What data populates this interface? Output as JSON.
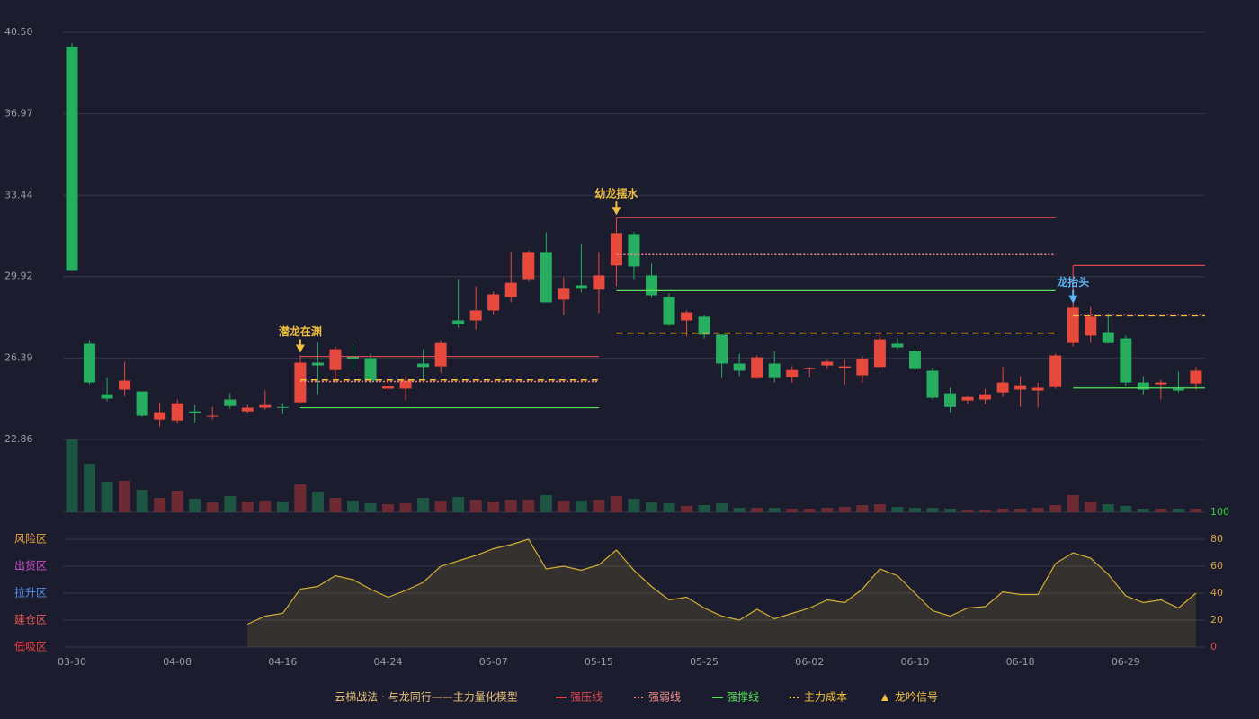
{
  "chart_data": [
    {
      "type": "candlestick",
      "up_color": "#e8493d",
      "down_color": "#27ae60",
      "volume_up_color": "#6e2a33",
      "volume_down_color": "#1e5442",
      "ylim": [
        22.86,
        40.5
      ],
      "yticks": [
        {
          "value": 40.5,
          "label": "40.50"
        },
        36.97,
        33.44,
        29.92,
        26.39,
        22.86
      ],
      "grid": true,
      "open": [
        39.88,
        27.01,
        24.82,
        25.02,
        24.94,
        23.73,
        23.69,
        24.08,
        23.85,
        24.59,
        24.08,
        24.24,
        24.27,
        24.47,
        26.19,
        25.87,
        26.46,
        26.38,
        25.06,
        25.06,
        26.15,
        26.03,
        28.02,
        28.02,
        28.45,
        29.03,
        29.81,
        30.98,
        28.92,
        29.54,
        29.35,
        30.4,
        31.76,
        29.97,
        29.03,
        28.02,
        28.18,
        27.4,
        26.15,
        25.52,
        26.15,
        25.56,
        25.91,
        26.07,
        25.95,
        25.64,
        26.0,
        27.01,
        26.69,
        25.84,
        24.86,
        24.55,
        24.59,
        24.9,
        25.02,
        24.98,
        25.13,
        27.04,
        27.36,
        27.51,
        27.24,
        25.33,
        25.25,
        25.06,
        25.29
      ],
      "high": [
        40.03,
        27.16,
        25.52,
        26.23,
        24.94,
        24.47,
        24.59,
        24.35,
        24.27,
        24.86,
        24.35,
        24.98,
        24.43,
        26.5,
        27.08,
        26.89,
        27.01,
        26.58,
        25.52,
        25.6,
        26.77,
        27.16,
        29.81,
        29.5,
        29.27,
        31.01,
        31.04,
        31.84,
        29.89,
        31.3,
        30.98,
        32.47,
        31.84,
        30.48,
        29.19,
        28.45,
        28.25,
        27.4,
        26.58,
        26.5,
        26.69,
        26.03,
        25.99,
        26.3,
        26.3,
        26.46,
        27.55,
        27.24,
        26.85,
        25.95,
        25.1,
        24.74,
        25.06,
        26.0,
        25.6,
        25.33,
        26.58,
        28.64,
        28.6,
        28.33,
        27.36,
        25.6,
        25.44,
        25.8,
        26.0
      ],
      "low": [
        30.2,
        25.25,
        24.51,
        24.74,
        23.85,
        23.42,
        23.54,
        23.57,
        23.73,
        24.2,
        24.0,
        24.16,
        23.96,
        24.43,
        24.82,
        25.33,
        25.91,
        25.33,
        24.98,
        24.55,
        25.41,
        25.76,
        27.7,
        27.63,
        28.29,
        28.8,
        29.7,
        28.8,
        28.25,
        29.23,
        28.33,
        29.5,
        29.81,
        28.99,
        27.79,
        27.32,
        27.24,
        25.52,
        25.6,
        25.48,
        25.33,
        25.33,
        25.56,
        25.91,
        25.25,
        25.33,
        25.91,
        26.77,
        25.84,
        24.59,
        24.04,
        24.39,
        24.39,
        24.7,
        24.27,
        24.24,
        25.06,
        26.89,
        27.04,
        27.01,
        25.17,
        24.82,
        24.59,
        24.9,
        25.02
      ],
      "close": [
        30.2,
        25.33,
        24.63,
        25.41,
        23.89,
        24.04,
        24.43,
        24.0,
        23.89,
        24.31,
        24.24,
        24.35,
        24.24,
        26.19,
        26.07,
        26.77,
        26.34,
        25.41,
        25.17,
        25.41,
        26.0,
        27.04,
        27.86,
        28.45,
        29.15,
        29.65,
        30.98,
        28.8,
        29.39,
        29.39,
        29.97,
        31.8,
        30.36,
        29.11,
        27.82,
        28.37,
        27.4,
        26.15,
        25.84,
        26.42,
        25.52,
        25.87,
        25.95,
        26.23,
        26.03,
        26.34,
        27.2,
        26.85,
        25.91,
        24.67,
        24.27,
        24.7,
        24.82,
        25.33,
        25.21,
        25.1,
        26.5,
        28.57,
        28.18,
        27.04,
        25.33,
        25.02,
        25.33,
        24.98,
        25.84
      ],
      "volume": [
        81,
        54,
        34,
        35,
        25,
        16,
        24,
        15,
        11,
        18,
        12,
        13,
        12,
        31,
        23,
        16,
        13,
        10,
        9,
        10,
        16,
        13,
        17,
        14,
        12,
        14,
        14,
        19,
        13,
        13,
        14,
        18,
        15,
        11,
        10,
        7,
        8,
        10,
        5,
        5,
        5,
        4,
        4,
        5,
        6,
        8,
        9,
        6,
        5,
        5,
        4,
        2,
        2,
        4,
        4,
        5,
        8,
        19,
        12,
        9,
        7,
        4,
        4,
        4,
        4
      ],
      "series": [
        {
          "name": "强压线",
          "color": "#d9474f",
          "style": "solid",
          "values": [
            null,
            null,
            null,
            null,
            null,
            null,
            null,
            null,
            null,
            null,
            null,
            null,
            null,
            26.46,
            26.46,
            26.46,
            26.46,
            26.46,
            26.46,
            26.46,
            26.46,
            26.46,
            26.46,
            26.46,
            26.46,
            26.46,
            26.46,
            26.46,
            26.46,
            26.46,
            26.46,
            32.47,
            32.47,
            32.47,
            32.47,
            32.47,
            32.47,
            32.47,
            32.47,
            32.47,
            32.47,
            32.47,
            32.47,
            32.47,
            32.47,
            32.47,
            32.47,
            32.47,
            32.47,
            32.47,
            32.47,
            32.47,
            32.47,
            32.47,
            32.47,
            32.47,
            32.47,
            30.4,
            30.4,
            30.4,
            30.4,
            30.4,
            30.4,
            30.4,
            30.4
          ]
        },
        {
          "name": "强弱线",
          "color": "#f08a8a",
          "style": "dotted",
          "values": [
            null,
            null,
            null,
            null,
            null,
            null,
            null,
            null,
            null,
            null,
            null,
            null,
            null,
            25.37,
            25.37,
            25.37,
            25.37,
            25.37,
            25.37,
            25.37,
            25.37,
            25.37,
            25.37,
            25.37,
            25.37,
            25.37,
            25.37,
            25.37,
            25.37,
            25.37,
            25.37,
            30.87,
            30.87,
            30.87,
            30.87,
            30.87,
            30.87,
            30.87,
            30.87,
            30.87,
            30.87,
            30.87,
            30.87,
            30.87,
            30.87,
            30.87,
            30.87,
            30.87,
            30.87,
            30.87,
            30.87,
            30.87,
            30.87,
            30.87,
            30.87,
            30.87,
            30.87,
            28.26,
            28.26,
            28.26,
            28.26,
            28.26,
            28.26,
            28.26,
            28.26
          ]
        },
        {
          "name": "强撑线",
          "color": "#5be05b",
          "style": "solid",
          "values": [
            null,
            null,
            null,
            null,
            null,
            null,
            null,
            null,
            null,
            null,
            null,
            null,
            null,
            24.24,
            24.24,
            24.24,
            24.24,
            24.24,
            24.24,
            24.24,
            24.24,
            24.24,
            24.24,
            24.24,
            24.24,
            24.24,
            24.24,
            24.24,
            24.24,
            24.24,
            24.24,
            29.31,
            29.31,
            29.31,
            29.31,
            29.31,
            29.31,
            29.31,
            29.31,
            29.31,
            29.31,
            29.31,
            29.31,
            29.31,
            29.31,
            29.31,
            29.31,
            29.31,
            29.31,
            29.31,
            29.31,
            29.31,
            29.31,
            29.31,
            29.31,
            29.31,
            29.31,
            25.09,
            25.09,
            25.09,
            25.09,
            25.09,
            25.09,
            25.09,
            25.09
          ]
        },
        {
          "name": "主力成本",
          "color": "#f2c230",
          "style": "dashed",
          "values": [
            null,
            null,
            null,
            null,
            null,
            null,
            null,
            null,
            null,
            null,
            null,
            null,
            null,
            25.44,
            25.44,
            25.44,
            25.44,
            25.44,
            25.44,
            25.44,
            25.44,
            25.44,
            25.44,
            25.44,
            25.44,
            25.44,
            25.44,
            25.44,
            25.44,
            25.44,
            25.44,
            27.47,
            27.47,
            27.47,
            27.47,
            27.47,
            27.47,
            27.47,
            27.47,
            27.47,
            27.47,
            27.47,
            27.47,
            27.47,
            27.47,
            27.47,
            27.47,
            27.47,
            27.47,
            27.47,
            27.47,
            27.47,
            27.47,
            27.47,
            27.47,
            27.47,
            27.47,
            28.22,
            28.22,
            28.22,
            28.22,
            28.22,
            28.22,
            28.22,
            28.22
          ]
        }
      ],
      "annotations": [
        {
          "index": 13,
          "text": "潜龙在渊",
          "color": "#f2c040"
        },
        {
          "index": 31,
          "text": "幼龙摆水",
          "color": "#f2c040"
        },
        {
          "index": 57,
          "text": "龙抬头",
          "color": "#5ab8f5"
        }
      ],
      "legend_title": "云梯战法 · 与龙同行——主力量化模型",
      "legend_title_color": "#e8c27a",
      "signal_legend": "龙吟信号",
      "signal_color": "#f2c040"
    },
    {
      "type": "area",
      "color": "#d4b032",
      "categories": [
        "03-30",
        null,
        null,
        null,
        null,
        null,
        "04-08",
        null,
        null,
        null,
        null,
        null,
        "04-16",
        null,
        null,
        null,
        null,
        null,
        "04-24",
        null,
        null,
        null,
        null,
        null,
        "05-07",
        null,
        null,
        null,
        null,
        null,
        "05-15",
        null,
        null,
        null,
        null,
        null,
        "05-25",
        null,
        null,
        null,
        null,
        null,
        "06-02",
        null,
        null,
        null,
        null,
        null,
        "06-10",
        null,
        null,
        null,
        null,
        null,
        "06-18",
        null,
        null,
        null,
        null,
        null,
        "06-29",
        null,
        null,
        null,
        null
      ],
      "values": [
        null,
        null,
        null,
        null,
        null,
        null,
        null,
        null,
        null,
        null,
        17,
        23,
        25,
        43,
        45,
        53,
        50,
        43,
        37,
        42,
        48,
        60,
        64,
        68,
        73,
        76,
        80,
        58,
        60,
        57,
        61,
        72,
        57,
        45,
        35,
        37,
        29,
        23,
        20,
        28,
        21,
        25,
        29,
        35,
        33,
        43,
        58,
        53,
        40,
        27,
        23,
        29,
        30,
        41,
        39,
        39,
        62,
        70,
        66,
        54,
        38,
        33,
        35,
        29,
        40
      ],
      "ylim": [
        0,
        100
      ],
      "yticks": [
        0,
        20,
        40,
        60,
        80,
        100
      ],
      "ytick_colors": [
        "#e84a4a",
        "#d9a441",
        "#d9a441",
        "#d9a441",
        "#d9a441",
        "#3ccf3c"
      ],
      "grid": true,
      "zones": [
        {
          "label": "风险区",
          "value": 80,
          "color": "#e8a33a"
        },
        {
          "label": "出货区",
          "value": 60,
          "color": "#d24fd2"
        },
        {
          "label": "拉升区",
          "value": 40,
          "color": "#5a8ff0"
        },
        {
          "label": "建仓区",
          "value": 20,
          "color": "#e85a5a"
        },
        {
          "label": "低吸区",
          "value": 0,
          "color": "#ee3f3f"
        }
      ]
    }
  ]
}
